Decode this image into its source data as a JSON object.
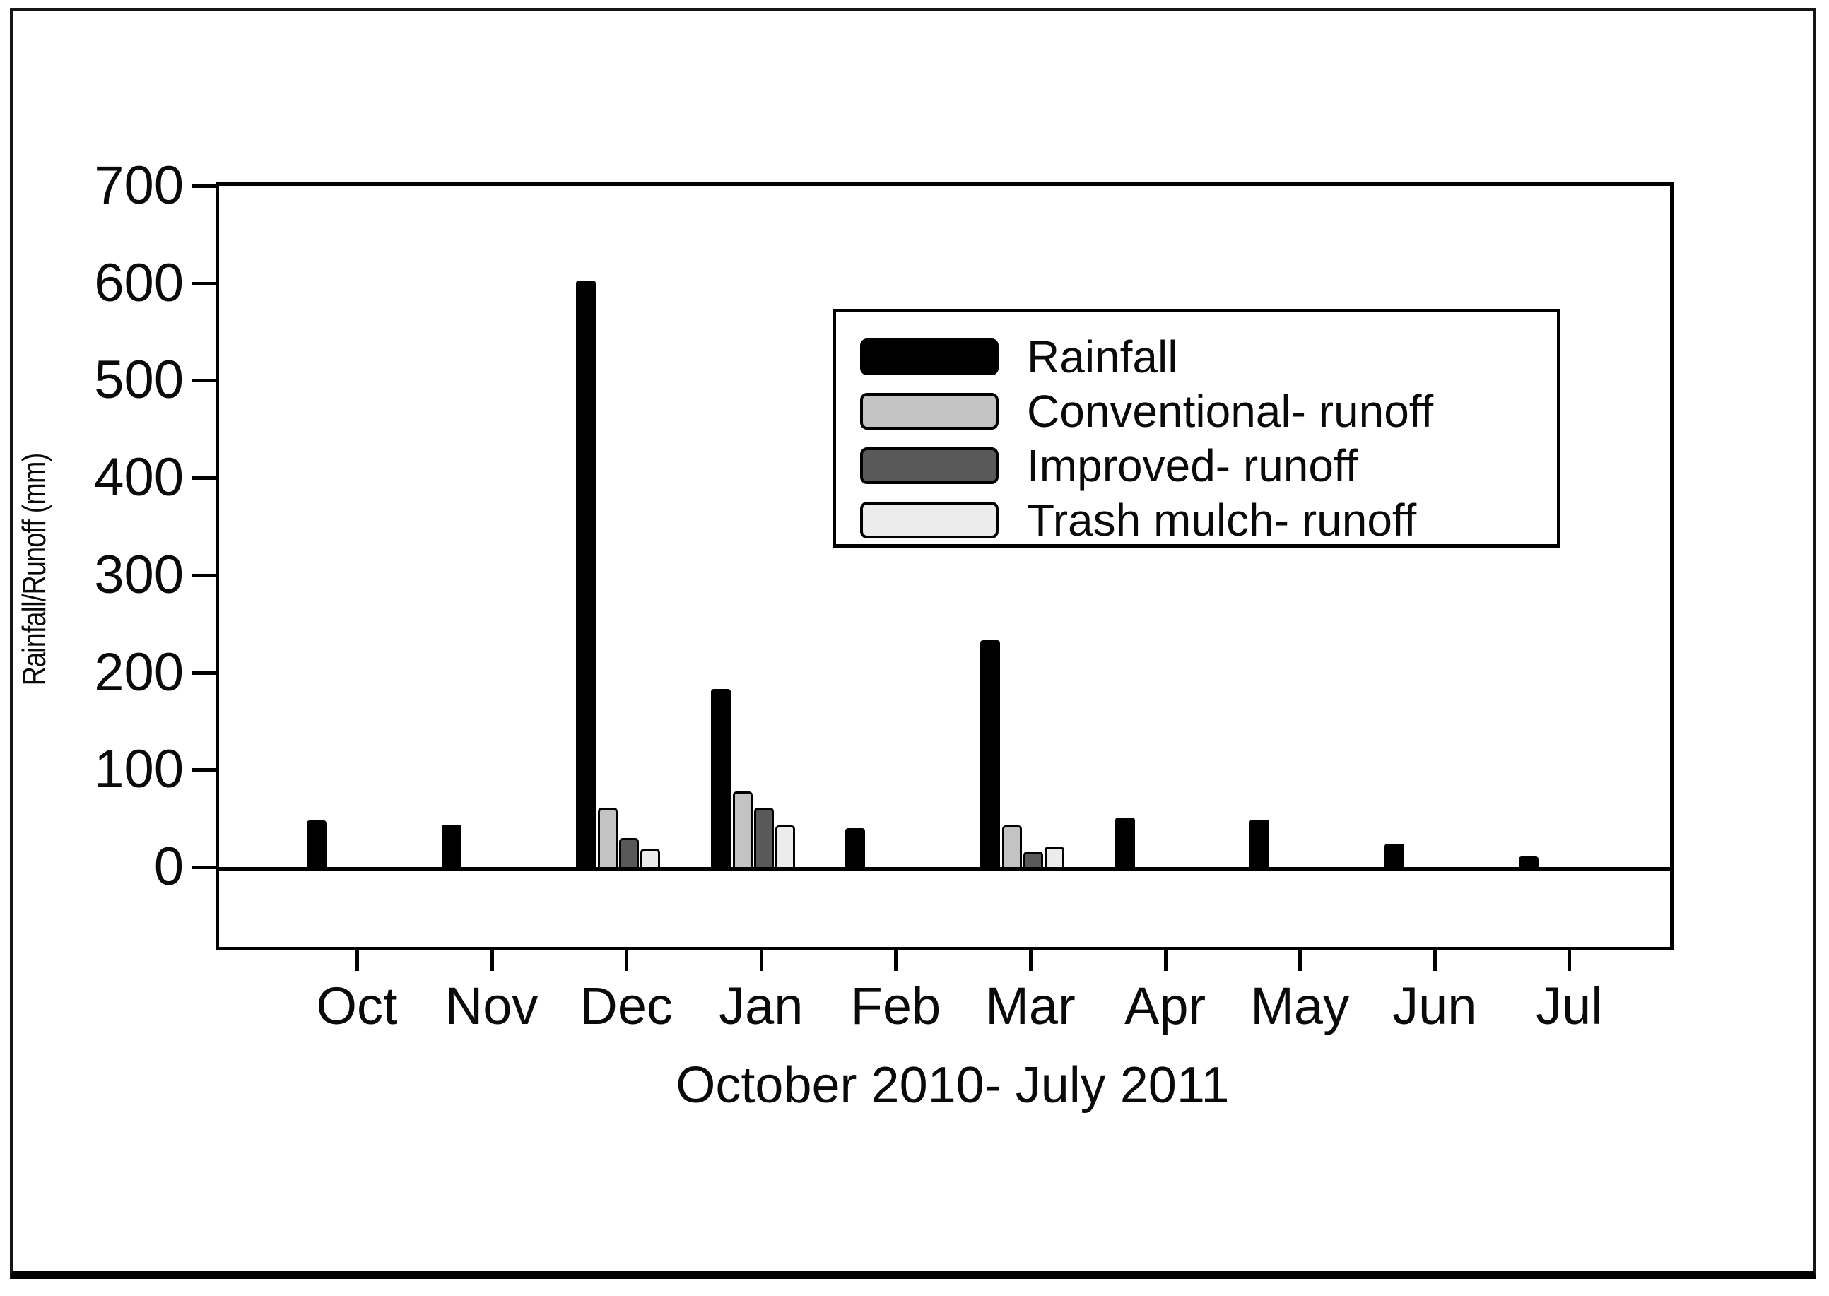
{
  "figure": {
    "background": "#ffffff",
    "border_color": "#000000"
  },
  "chart_data": {
    "type": "bar",
    "title": "",
    "xlabel": "October 2010- July 2011",
    "ylabel": "Rainfall/Runoff (mm)",
    "categories": [
      "Oct",
      "Nov",
      "Dec",
      "Jan",
      "Feb",
      "Mar",
      "Apr",
      "May",
      "Jun",
      "Jul"
    ],
    "ylim": [
      0,
      700
    ],
    "yticks": [
      0,
      100,
      200,
      300,
      400,
      500,
      600,
      700
    ],
    "grid": false,
    "legend_position": "upper right inside plot",
    "series": [
      {
        "name": "Rainfall",
        "color": "#000000",
        "values": [
          50,
          46,
          605,
          185,
          42,
          235,
          53,
          51,
          26,
          13
        ]
      },
      {
        "name": "Conventional- runoff",
        "color": "#c3c3c3",
        "values": [
          null,
          null,
          63,
          80,
          null,
          45,
          null,
          null,
          null,
          null
        ]
      },
      {
        "name": "Improved- runoff",
        "color": "#595959",
        "values": [
          null,
          null,
          32,
          63,
          null,
          18,
          null,
          null,
          null,
          null
        ]
      },
      {
        "name": "Trash mulch- runoff",
        "color": "#ececec",
        "values": [
          null,
          null,
          21,
          45,
          null,
          23,
          null,
          null,
          null,
          null
        ]
      }
    ]
  }
}
